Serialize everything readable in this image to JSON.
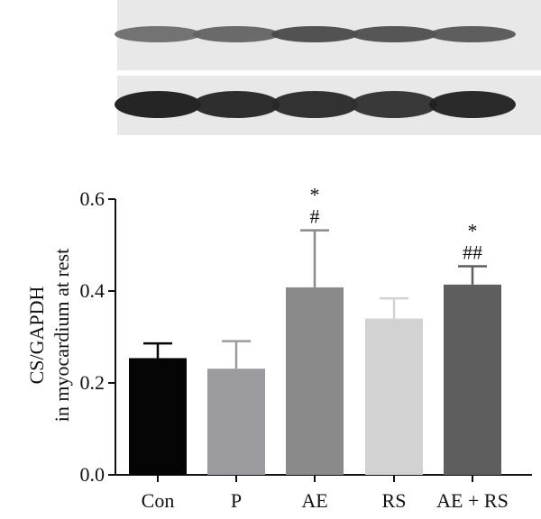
{
  "blot": {
    "rows": [
      {
        "bands": [
          0.55,
          0.6,
          0.72,
          0.7,
          0.66
        ]
      },
      {
        "bands": [
          0.95,
          0.9,
          0.88,
          0.85,
          0.92
        ]
      }
    ]
  },
  "chart_data": {
    "type": "bar",
    "categories": [
      "Con",
      "P",
      "AE",
      "RS",
      "AE + RS"
    ],
    "values": [
      0.254,
      0.231,
      0.408,
      0.34,
      0.414
    ],
    "errors": [
      0.032,
      0.06,
      0.124,
      0.044,
      0.04
    ],
    "colors": [
      "#050505",
      "#9a9a9f",
      "#8a8a8a",
      "#d2d2d2",
      "#5e5e5e"
    ],
    "annotations": [
      {
        "category": "AE",
        "lines": [
          "*",
          "#"
        ]
      },
      {
        "category": "AE + RS",
        "lines": [
          "*",
          "##"
        ]
      }
    ],
    "ylabel_lines": [
      "CS/GAPDH",
      "in myocardium at rest"
    ],
    "xlabel": "",
    "title": "",
    "ylim": [
      0,
      0.6
    ],
    "yticks": [
      0.0,
      0.2,
      0.4,
      0.6
    ],
    "ytick_labels": [
      "0.0",
      "0.2",
      "0.4",
      "0.6"
    ],
    "grid": false
  }
}
